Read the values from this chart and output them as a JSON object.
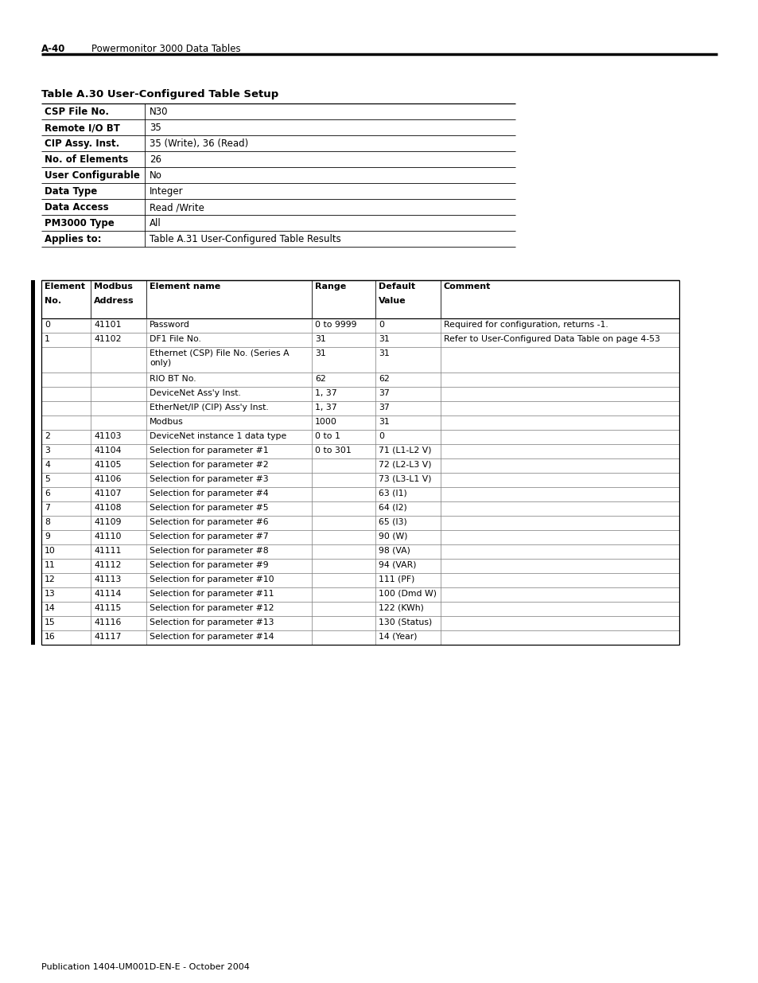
{
  "page_header_bold": "A-40",
  "page_header_normal": "     Powermonitor 3000 Data Tables",
  "table_title": "Table A.30 User-Configured Table Setup",
  "info_table": [
    [
      "CSP File No.",
      "N30"
    ],
    [
      "Remote I/O BT",
      "35"
    ],
    [
      "CIP Assy. Inst.",
      "35 (Write), 36 (Read)"
    ],
    [
      "No. of Elements",
      "26"
    ],
    [
      "User Configurable",
      "No"
    ],
    [
      "Data Type",
      "Integer"
    ],
    [
      "Data Access",
      "Read /Write"
    ],
    [
      "PM3000 Type",
      "All"
    ],
    [
      "Applies to:",
      "Table A.31 User-Configured Table Results"
    ]
  ],
  "main_table_rows": [
    [
      "0",
      "41101",
      "Password",
      "0 to 9999",
      "0",
      "Required for configuration, returns -1."
    ],
    [
      "1",
      "41102",
      "DF1 File No.",
      "31",
      "31",
      "Refer to User-Configured Data Table on page 4-53"
    ],
    [
      "",
      "",
      "Ethernet (CSP) File No. (Series A\nonly)",
      "31",
      "31",
      ""
    ],
    [
      "",
      "",
      "RIO BT No.",
      "62",
      "62",
      ""
    ],
    [
      "",
      "",
      "DeviceNet Ass'y Inst.",
      "1, 37",
      "37",
      ""
    ],
    [
      "",
      "",
      "EtherNet/IP (CIP) Ass'y Inst.",
      "1, 37",
      "37",
      ""
    ],
    [
      "",
      "",
      "Modbus",
      "1000",
      "31",
      ""
    ],
    [
      "2",
      "41103",
      "DeviceNet instance 1 data type",
      "0 to 1",
      "0",
      ""
    ],
    [
      "3",
      "41104",
      "Selection for parameter #1",
      "0 to 301",
      "71 (L1-L2 V)",
      ""
    ],
    [
      "4",
      "41105",
      "Selection for parameter #2",
      "",
      "72 (L2-L3 V)",
      ""
    ],
    [
      "5",
      "41106",
      "Selection for parameter #3",
      "",
      "73 (L3-L1 V)",
      ""
    ],
    [
      "6",
      "41107",
      "Selection for parameter #4",
      "",
      "63 (I1)",
      ""
    ],
    [
      "7",
      "41108",
      "Selection for parameter #5",
      "",
      "64 (I2)",
      ""
    ],
    [
      "8",
      "41109",
      "Selection for parameter #6",
      "",
      "65 (I3)",
      ""
    ],
    [
      "9",
      "41110",
      "Selection for parameter #7",
      "",
      "90 (W)",
      ""
    ],
    [
      "10",
      "41111",
      "Selection for parameter #8",
      "",
      "98 (VA)",
      ""
    ],
    [
      "11",
      "41112",
      "Selection for parameter #9",
      "",
      "94 (VAR)",
      ""
    ],
    [
      "12",
      "41113",
      "Selection for parameter #10",
      "",
      "111 (PF)",
      ""
    ],
    [
      "13",
      "41114",
      "Selection for parameter #11",
      "",
      "100 (Dmd W)",
      ""
    ],
    [
      "14",
      "41115",
      "Selection for parameter #12",
      "",
      "122 (KWh)",
      ""
    ],
    [
      "15",
      "41116",
      "Selection for parameter #13",
      "",
      "130 (Status)",
      ""
    ],
    [
      "16",
      "41117",
      "Selection for parameter #14",
      "",
      "14 (Year)",
      ""
    ]
  ],
  "page_footer": "Publication 1404-UM001D-EN-E - October 2004",
  "bg_color": "#ffffff",
  "line_color": "#000000",
  "header_line_color": "#aaaaaa",
  "left_bar_color": "#000000"
}
